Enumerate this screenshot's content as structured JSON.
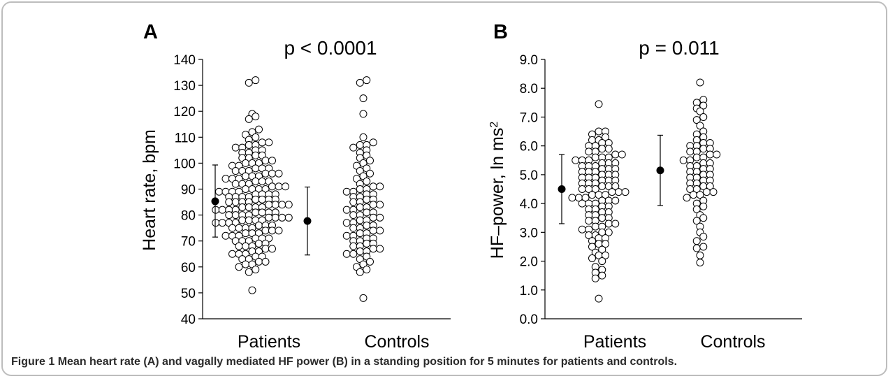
{
  "caption": {
    "label": "Figure 1",
    "text": "Mean heart rate (A) and vagally mediated HF power (B) in a standing position for 5 minutes for patients and controls."
  },
  "colors": {
    "marker_fill": "#ffffff",
    "marker_stroke": "#000000",
    "mean_fill": "#000000",
    "axis": "#000000"
  },
  "chart_data": [
    {
      "type": "scatter",
      "panel": "A",
      "title": "p < 0.0001",
      "ylabel_main": "Heart rate, bpm",
      "ylim": [
        40,
        140
      ],
      "yticks": [
        40,
        50,
        60,
        70,
        80,
        90,
        100,
        110,
        120,
        130,
        140
      ],
      "ytick_decimals": 0,
      "categories": [
        "Patients",
        "Controls"
      ],
      "summary": [
        {
          "name": "Patients",
          "mean": 85.3,
          "low": 71.5,
          "high": 99.3
        },
        {
          "name": "Controls",
          "mean": 77.7,
          "low": 64.6,
          "high": 90.8
        }
      ],
      "series": [
        {
          "name": "Patients",
          "values": [
            51,
            58,
            59,
            60,
            61,
            61,
            62,
            62,
            63,
            63,
            64,
            64,
            65,
            65,
            65,
            66,
            66,
            67,
            67,
            68,
            68,
            68,
            69,
            69,
            70,
            70,
            70,
            71,
            71,
            71,
            72,
            72,
            72,
            73,
            73,
            73,
            74,
            74,
            74,
            75,
            75,
            75,
            75,
            76,
            76,
            76,
            77,
            77,
            77,
            77,
            78,
            78,
            78,
            78,
            79,
            79,
            79,
            79,
            80,
            80,
            80,
            80,
            81,
            81,
            81,
            81,
            82,
            82,
            82,
            82,
            83,
            83,
            83,
            83,
            84,
            84,
            84,
            84,
            85,
            85,
            85,
            85,
            86,
            86,
            86,
            86,
            87,
            87,
            87,
            87,
            88,
            88,
            88,
            88,
            89,
            89,
            89,
            89,
            90,
            90,
            90,
            90,
            91,
            91,
            91,
            92,
            92,
            92,
            93,
            93,
            93,
            94,
            94,
            94,
            95,
            95,
            95,
            96,
            96,
            96,
            97,
            97,
            97,
            98,
            98,
            98,
            99,
            99,
            100,
            100,
            100,
            101,
            101,
            102,
            102,
            103,
            103,
            104,
            104,
            105,
            105,
            106,
            106,
            107,
            107,
            108,
            108,
            109,
            110,
            111,
            112,
            113,
            117,
            118,
            119,
            131,
            132
          ]
        },
        {
          "name": "Controls",
          "values": [
            48,
            58,
            59,
            60,
            61,
            62,
            63,
            64,
            65,
            65,
            66,
            66,
            67,
            67,
            68,
            68,
            69,
            69,
            70,
            70,
            71,
            71,
            72,
            72,
            73,
            73,
            74,
            74,
            75,
            75,
            76,
            76,
            77,
            77,
            78,
            78,
            79,
            79,
            80,
            80,
            81,
            81,
            82,
            82,
            83,
            83,
            84,
            84,
            85,
            85,
            86,
            86,
            87,
            87,
            88,
            88,
            89,
            89,
            90,
            90,
            91,
            91,
            92,
            93,
            94,
            95,
            96,
            97,
            98,
            99,
            100,
            101,
            102,
            103,
            104,
            105,
            106,
            107,
            107,
            108,
            110,
            119,
            125,
            131,
            132
          ]
        }
      ]
    },
    {
      "type": "scatter",
      "panel": "B",
      "title": "p = 0.011",
      "ylabel_main": "HF–power, ln ms",
      "ylabel_sup": "2",
      "ylim": [
        0,
        9
      ],
      "yticks": [
        0,
        1,
        2,
        3,
        4,
        5,
        6,
        7,
        8,
        9
      ],
      "ytick_decimals": 1,
      "categories": [
        "Patients",
        "Controls"
      ],
      "summary": [
        {
          "name": "Patients",
          "mean": 4.5,
          "low": 3.3,
          "high": 5.7
        },
        {
          "name": "Controls",
          "mean": 5.15,
          "low": 3.93,
          "high": 6.37
        }
      ],
      "series": [
        {
          "name": "Patients",
          "values": [
            0.7,
            1.4,
            1.5,
            1.6,
            1.7,
            1.8,
            2.0,
            2.1,
            2.2,
            2.2,
            2.3,
            2.4,
            2.5,
            2.6,
            2.6,
            2.7,
            2.8,
            2.8,
            2.9,
            2.9,
            3.0,
            3.0,
            3.1,
            3.1,
            3.2,
            3.2,
            3.3,
            3.3,
            3.4,
            3.4,
            3.5,
            3.5,
            3.6,
            3.6,
            3.7,
            3.7,
            3.8,
            3.8,
            3.9,
            3.9,
            4.0,
            4.0,
            4.0,
            4.1,
            4.1,
            4.1,
            4.2,
            4.2,
            4.2,
            4.3,
            4.3,
            4.3,
            4.4,
            4.4,
            4.4,
            4.5,
            4.5,
            4.5,
            4.6,
            4.6,
            4.6,
            4.7,
            4.7,
            4.7,
            4.8,
            4.8,
            4.8,
            4.9,
            4.9,
            4.9,
            5.0,
            5.0,
            5.0,
            5.1,
            5.1,
            5.1,
            5.2,
            5.2,
            5.2,
            5.3,
            5.3,
            5.3,
            5.4,
            5.4,
            5.4,
            5.5,
            5.5,
            5.5,
            5.6,
            5.6,
            5.6,
            5.7,
            5.7,
            5.8,
            5.8,
            5.9,
            5.9,
            6.0,
            6.0,
            6.1,
            6.1,
            6.2,
            6.2,
            6.3,
            6.4,
            6.5,
            6.5,
            7.45
          ]
        },
        {
          "name": "Controls",
          "values": [
            1.95,
            2.2,
            2.45,
            2.5,
            2.7,
            2.85,
            3.0,
            3.2,
            3.4,
            3.5,
            3.6,
            3.8,
            3.9,
            4.0,
            4.1,
            4.2,
            4.3,
            4.3,
            4.4,
            4.4,
            4.5,
            4.5,
            4.6,
            4.6,
            4.7,
            4.7,
            4.8,
            4.8,
            4.9,
            4.9,
            5.0,
            5.0,
            5.1,
            5.1,
            5.2,
            5.2,
            5.3,
            5.3,
            5.4,
            5.4,
            5.5,
            5.5,
            5.6,
            5.6,
            5.7,
            5.7,
            5.8,
            5.8,
            5.9,
            5.9,
            6.0,
            6.0,
            6.1,
            6.1,
            6.2,
            6.3,
            6.4,
            6.5,
            6.7,
            6.9,
            7.0,
            7.2,
            7.3,
            7.4,
            7.5,
            7.6,
            8.2
          ]
        }
      ]
    }
  ]
}
